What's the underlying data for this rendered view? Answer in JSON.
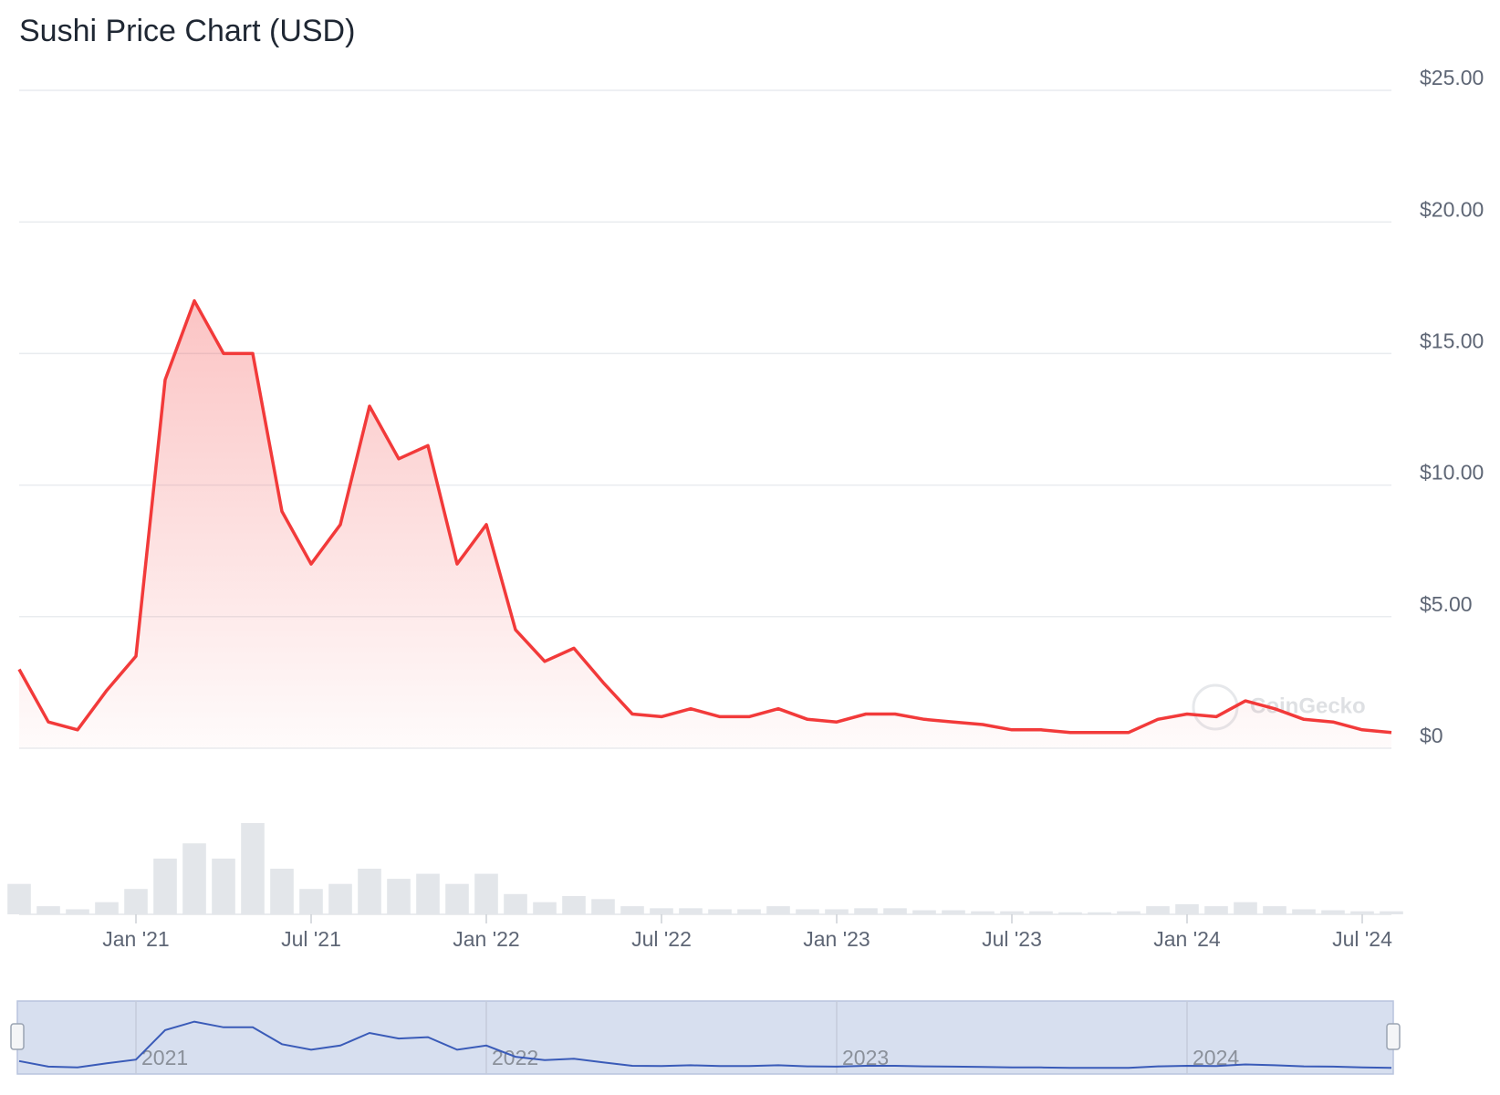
{
  "chart_data": {
    "type": "line",
    "title": "Sushi Price Chart (USD)",
    "x": [
      "2020-09",
      "2020-10",
      "2020-11",
      "2020-12",
      "2021-01",
      "2021-02",
      "2021-03",
      "2021-04",
      "2021-05",
      "2021-06",
      "2021-07",
      "2021-08",
      "2021-09",
      "2021-10",
      "2021-11",
      "2021-12",
      "2022-01",
      "2022-02",
      "2022-03",
      "2022-04",
      "2022-05",
      "2022-06",
      "2022-07",
      "2022-08",
      "2022-09",
      "2022-10",
      "2022-11",
      "2022-12",
      "2023-01",
      "2023-02",
      "2023-03",
      "2023-04",
      "2023-05",
      "2023-06",
      "2023-07",
      "2023-08",
      "2023-09",
      "2023-10",
      "2023-11",
      "2023-12",
      "2024-01",
      "2024-02",
      "2024-03",
      "2024-04",
      "2024-05",
      "2024-06",
      "2024-07",
      "2024-08"
    ],
    "series": [
      {
        "name": "Price",
        "color": "#f23a3a",
        "values": [
          3.0,
          1.0,
          0.7,
          2.2,
          3.5,
          14,
          17,
          15,
          15,
          9,
          7,
          8.5,
          13,
          11,
          11.5,
          7,
          8.5,
          4.5,
          3.3,
          3.8,
          2.5,
          1.3,
          1.2,
          1.5,
          1.2,
          1.2,
          1.5,
          1.1,
          1.0,
          1.3,
          1.3,
          1.1,
          1.0,
          0.9,
          0.7,
          0.7,
          0.6,
          0.6,
          0.6,
          1.1,
          1.3,
          1.2,
          1.8,
          1.5,
          1.1,
          1.0,
          0.7,
          0.6
        ]
      }
    ],
    "volume": {
      "color": "#e3e6ea",
      "values": [
        30,
        8,
        5,
        12,
        25,
        55,
        70,
        55,
        90,
        45,
        25,
        30,
        45,
        35,
        40,
        30,
        40,
        20,
        12,
        18,
        15,
        8,
        6,
        6,
        5,
        5,
        8,
        5,
        5,
        6,
        6,
        4,
        4,
        3,
        3,
        3,
        2,
        2,
        3,
        8,
        10,
        8,
        12,
        8,
        5,
        4,
        3,
        3
      ]
    },
    "xlim": [
      "2020-09",
      "2024-08"
    ],
    "xticks": [
      {
        "value": "2021-01",
        "label": "Jan '21"
      },
      {
        "value": "2021-07",
        "label": "Jul '21"
      },
      {
        "value": "2022-01",
        "label": "Jan '22"
      },
      {
        "value": "2022-07",
        "label": "Jul '22"
      },
      {
        "value": "2023-01",
        "label": "Jan '23"
      },
      {
        "value": "2023-07",
        "label": "Jul '23"
      },
      {
        "value": "2024-01",
        "label": "Jan '24"
      },
      {
        "value": "2024-07",
        "label": "Jul '24"
      }
    ],
    "ylim": [
      0,
      25
    ],
    "yticks": [
      {
        "value": 0,
        "label": "$0"
      },
      {
        "value": 5,
        "label": "$5.00"
      },
      {
        "value": 10,
        "label": "$10.00"
      },
      {
        "value": 15,
        "label": "$15.00"
      },
      {
        "value": 20,
        "label": "$20.00"
      },
      {
        "value": 25,
        "label": "$25.00"
      }
    ],
    "grid": true,
    "navigator": {
      "color": "#3a5bb8",
      "fill": "#d7dfef",
      "ticks": [
        {
          "value": "2021-01",
          "label": "2021"
        },
        {
          "value": "2022-01",
          "label": "2022"
        },
        {
          "value": "2023-01",
          "label": "2023"
        },
        {
          "value": "2024-01",
          "label": "2024"
        }
      ]
    },
    "watermark": "CoinGecko"
  }
}
